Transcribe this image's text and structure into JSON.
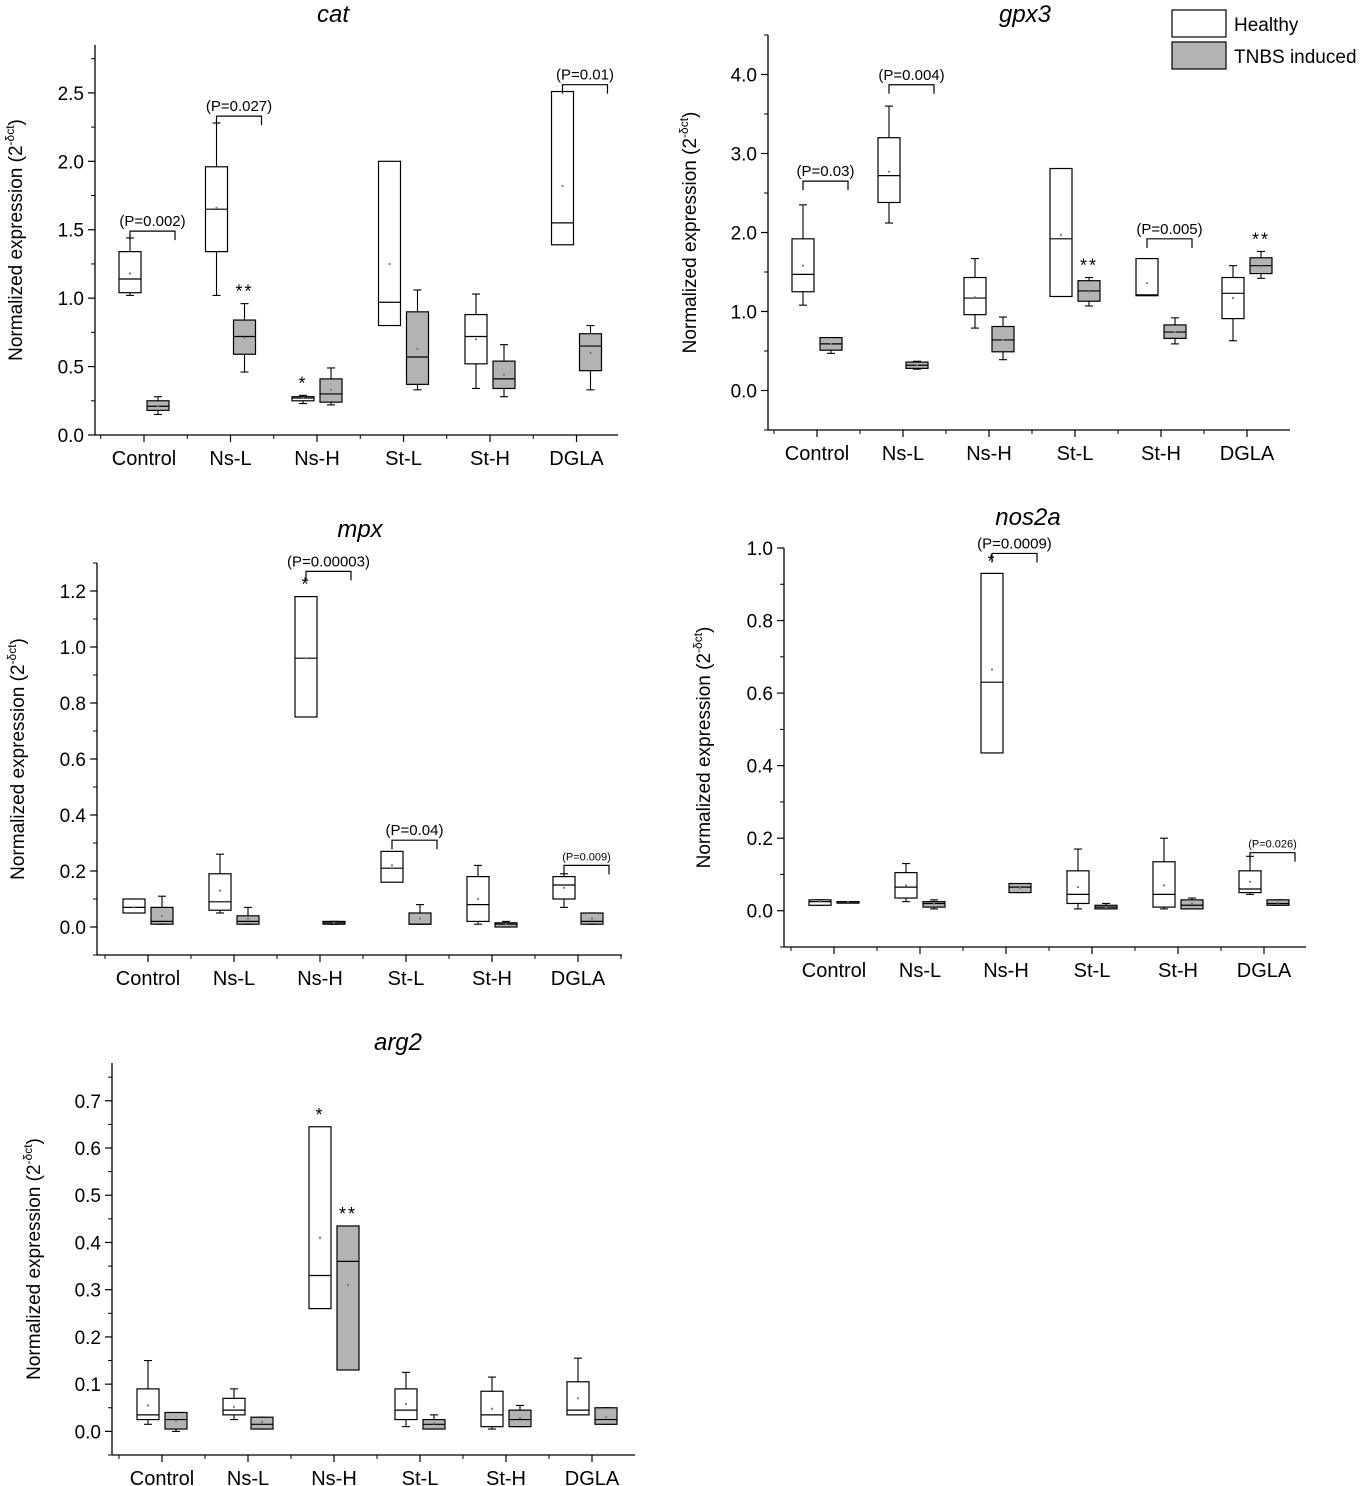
{
  "legend": {
    "placement": "top-right",
    "items": [
      {
        "label": "Healthy",
        "color": "#ffffff"
      },
      {
        "label": "TNBS induced",
        "color": "#b3b3b3"
      }
    ]
  },
  "chart_data": [
    {
      "id": "cat",
      "type": "box",
      "title": "cat",
      "ylabel": "Normalized expression (2^-δct)",
      "ylim": [
        0,
        2.85
      ],
      "yticks": [
        0.0,
        0.5,
        1.0,
        1.5,
        2.0,
        2.5
      ],
      "ytick_labels": [
        "0.0",
        "0.5",
        "1.0",
        "1.5",
        "2.0",
        "2.5"
      ],
      "categories": [
        "Control",
        "Ns-L",
        "Ns-H",
        "St-L",
        "St-H",
        "DGLA"
      ],
      "series": [
        {
          "name": "Healthy",
          "boxes": [
            {
              "q1": 1.04,
              "median": 1.14,
              "q3": 1.34,
              "wlo": 1.02,
              "whi": 1.44,
              "mean": 1.18
            },
            {
              "q1": 1.34,
              "median": 1.65,
              "q3": 1.96,
              "wlo": 1.02,
              "whi": 2.28,
              "mean": 1.66
            },
            {
              "q1": 0.25,
              "median": 0.27,
              "q3": 0.28,
              "wlo": 0.23,
              "whi": 0.29,
              "mean": 0.27,
              "mark": "*"
            },
            {
              "q1": 0.8,
              "median": 0.97,
              "q3": 2.0,
              "mean": 1.25
            },
            {
              "q1": 0.52,
              "median": 0.72,
              "q3": 0.88,
              "wlo": 0.34,
              "whi": 1.03,
              "mean": 0.7
            },
            {
              "q1": 1.39,
              "median": 1.55,
              "q3": 2.51,
              "mean": 1.82
            }
          ]
        },
        {
          "name": "TNBS induced",
          "boxes": [
            {
              "q1": 0.18,
              "median": 0.21,
              "q3": 0.25,
              "wlo": 0.15,
              "whi": 0.28,
              "mean": 0.21
            },
            {
              "q1": 0.59,
              "median": 0.72,
              "q3": 0.84,
              "wlo": 0.46,
              "whi": 0.96,
              "mean": 0.71,
              "mark": "**"
            },
            {
              "q1": 0.24,
              "median": 0.3,
              "q3": 0.41,
              "wlo": 0.22,
              "whi": 0.49,
              "mean": 0.33
            },
            {
              "q1": 0.37,
              "median": 0.57,
              "q3": 0.9,
              "wlo": 0.33,
              "whi": 1.06,
              "mean": 0.63
            },
            {
              "q1": 0.34,
              "median": 0.41,
              "q3": 0.54,
              "wlo": 0.28,
              "whi": 0.66,
              "mean": 0.44
            },
            {
              "q1": 0.47,
              "median": 0.65,
              "q3": 0.74,
              "wlo": 0.33,
              "whi": 0.8,
              "mean": 0.6
            }
          ]
        }
      ],
      "pvalues": [
        {
          "category": 0,
          "label": "(P=0.002)",
          "at": 1.49
        },
        {
          "category": 1,
          "label": "(P=0.027)",
          "at": 2.33
        },
        {
          "category": 5,
          "label": "(P=0.01)",
          "at": 2.56
        }
      ]
    },
    {
      "id": "gpx3",
      "type": "box",
      "title": "gpx3",
      "ylabel": "Normalized expression (2^-δct)",
      "ylim": [
        -0.5,
        4.5
      ],
      "yticks": [
        0.0,
        1.0,
        2.0,
        3.0,
        4.0
      ],
      "ytick_labels": [
        "0.0",
        "1.0",
        "2.0",
        "3.0",
        "4.0"
      ],
      "categories": [
        "Control",
        "Ns-L",
        "Ns-H",
        "St-L",
        "St-H",
        "DGLA"
      ],
      "series": [
        {
          "name": "Healthy",
          "boxes": [
            {
              "q1": 1.25,
              "median": 1.47,
              "q3": 1.92,
              "wlo": 1.08,
              "whi": 2.35,
              "mean": 1.58
            },
            {
              "q1": 2.38,
              "median": 2.72,
              "q3": 3.2,
              "wlo": 2.12,
              "whi": 3.6,
              "mean": 2.77
            },
            {
              "q1": 0.96,
              "median": 1.17,
              "q3": 1.43,
              "wlo": 0.79,
              "whi": 1.67,
              "mean": 1.18
            },
            {
              "q1": 1.19,
              "median": 1.92,
              "q3": 2.81,
              "mean": 1.97
            },
            {
              "q1": 1.2,
              "median": 1.21,
              "q3": 1.67,
              "mean": 1.36
            },
            {
              "q1": 0.91,
              "median": 1.23,
              "q3": 1.43,
              "wlo": 0.63,
              "whi": 1.58,
              "mean": 1.17
            }
          ]
        },
        {
          "name": "TNBS induced",
          "boxes": [
            {
              "q1": 0.51,
              "median": 0.59,
              "q3": 0.67,
              "wlo": 0.47,
              "whi": 0.67,
              "mean": 0.59
            },
            {
              "q1": 0.28,
              "median": 0.32,
              "q3": 0.36,
              "wlo": 0.27,
              "whi": 0.37,
              "mean": 0.32
            },
            {
              "q1": 0.49,
              "median": 0.64,
              "q3": 0.81,
              "wlo": 0.39,
              "whi": 0.93,
              "mean": 0.64
            },
            {
              "q1": 1.13,
              "median": 1.26,
              "q3": 1.39,
              "wlo": 1.07,
              "whi": 1.43,
              "mean": 1.25,
              "mark": "**"
            },
            {
              "q1": 0.66,
              "median": 0.74,
              "q3": 0.83,
              "wlo": 0.59,
              "whi": 0.92,
              "mean": 0.74
            },
            {
              "q1": 1.48,
              "median": 1.58,
              "q3": 1.68,
              "wlo": 1.42,
              "whi": 1.76,
              "mean": 1.57,
              "mark": "**"
            }
          ]
        }
      ],
      "pvalues": [
        {
          "category": 0,
          "label": "(P=0.03)",
          "at": 2.65
        },
        {
          "category": 1,
          "label": "(P=0.004)",
          "at": 3.87
        },
        {
          "category": 4,
          "label": "(P=0.005)",
          "at": 1.92
        }
      ]
    },
    {
      "id": "mpx",
      "type": "box",
      "title": "mpx",
      "ylabel": "Normalized expression (2^-δct)",
      "ylim": [
        -0.1,
        1.3
      ],
      "yticks": [
        0.0,
        0.2,
        0.4,
        0.6,
        0.8,
        1.0,
        1.2
      ],
      "ytick_labels": [
        "0.0",
        "0.2",
        "0.4",
        "0.6",
        "0.8",
        "1.0",
        "1.2"
      ],
      "categories": [
        "Control",
        "Ns-L",
        "Ns-H",
        "St-L",
        "St-H",
        "DGLA"
      ],
      "series": [
        {
          "name": "Healthy",
          "boxes": [
            {
              "q1": 0.05,
              "median": 0.07,
              "q3": 0.1,
              "wlo": 0.05,
              "whi": 0.1,
              "mean": 0.07
            },
            {
              "q1": 0.06,
              "median": 0.09,
              "q3": 0.19,
              "wlo": 0.05,
              "whi": 0.26,
              "mean": 0.13
            },
            {
              "q1": 0.75,
              "median": 0.96,
              "q3": 1.18,
              "mean": 0.96,
              "mark": "*"
            },
            {
              "q1": 0.16,
              "median": 0.21,
              "q3": 0.27,
              "mean": 0.22
            },
            {
              "q1": 0.02,
              "median": 0.08,
              "q3": 0.18,
              "wlo": 0.01,
              "whi": 0.22,
              "mean": 0.1
            },
            {
              "q1": 0.1,
              "median": 0.15,
              "q3": 0.18,
              "wlo": 0.07,
              "whi": 0.19,
              "mean": 0.14
            }
          ]
        },
        {
          "name": "TNBS induced",
          "boxes": [
            {
              "q1": 0.01,
              "median": 0.02,
              "q3": 0.07,
              "wlo": 0.01,
              "whi": 0.11,
              "mean": 0.04
            },
            {
              "q1": 0.01,
              "median": 0.02,
              "q3": 0.04,
              "wlo": 0.01,
              "whi": 0.07,
              "mean": 0.03
            },
            {
              "q1": 0.01,
              "median": 0.015,
              "q3": 0.02,
              "wlo": 0.01,
              "whi": 0.02,
              "mean": 0.015
            },
            {
              "q1": 0.01,
              "median": 0.01,
              "q3": 0.05,
              "wlo": 0.01,
              "whi": 0.08,
              "mean": 0.03
            },
            {
              "q1": 0.0,
              "median": 0.01,
              "q3": 0.015,
              "wlo": 0.0,
              "whi": 0.02,
              "mean": 0.01
            },
            {
              "q1": 0.01,
              "median": 0.02,
              "q3": 0.05,
              "wlo": 0.01,
              "whi": 0.05,
              "mean": 0.03
            }
          ]
        }
      ],
      "pvalues": [
        {
          "category": 2,
          "label": "(P=0.00003)",
          "at": 1.27
        },
        {
          "category": 3,
          "label": "(P=0.04)",
          "at": 0.31
        },
        {
          "category": 5,
          "label": "(P=0.009)",
          "at": 0.22,
          "small": true
        }
      ]
    },
    {
      "id": "nos2a",
      "type": "box",
      "title": "nos2a",
      "ylabel": "Normalized expression (2^-δct)",
      "ylim": [
        -0.1,
        1.0
      ],
      "yticks": [
        0.0,
        0.2,
        0.4,
        0.6,
        0.8,
        1.0
      ],
      "ytick_labels": [
        "0.0",
        "0.2",
        "0.4",
        "0.6",
        "0.8",
        "1.0"
      ],
      "categories": [
        "Control",
        "Ns-L",
        "Ns-H",
        "St-L",
        "St-H",
        "DGLA"
      ],
      "series": [
        {
          "name": "Healthy",
          "boxes": [
            {
              "q1": 0.015,
              "median": 0.025,
              "q3": 0.03,
              "wlo": 0.015,
              "whi": 0.03,
              "mean": 0.025
            },
            {
              "q1": 0.035,
              "median": 0.065,
              "q3": 0.105,
              "wlo": 0.025,
              "whi": 0.13,
              "mean": 0.07
            },
            {
              "q1": 0.435,
              "median": 0.63,
              "q3": 0.93,
              "mean": 0.665,
              "mark": "*"
            },
            {
              "q1": 0.02,
              "median": 0.045,
              "q3": 0.11,
              "wlo": 0.005,
              "whi": 0.17,
              "mean": 0.065
            },
            {
              "q1": 0.01,
              "median": 0.045,
              "q3": 0.135,
              "wlo": 0.005,
              "whi": 0.2,
              "mean": 0.07
            },
            {
              "q1": 0.05,
              "median": 0.06,
              "q3": 0.11,
              "wlo": 0.045,
              "whi": 0.15,
              "mean": 0.08
            }
          ]
        },
        {
          "name": "TNBS induced",
          "boxes": [
            {
              "q1": 0.025,
              "median": 0.025,
              "q3": 0.025,
              "mean": 0.025
            },
            {
              "q1": 0.01,
              "median": 0.02,
              "q3": 0.025,
              "wlo": 0.005,
              "whi": 0.03,
              "mean": 0.02
            },
            {
              "q1": 0.05,
              "median": 0.065,
              "q3": 0.075,
              "wlo": 0.05,
              "whi": 0.075,
              "mean": 0.063
            },
            {
              "q1": 0.005,
              "median": 0.01,
              "q3": 0.015,
              "wlo": 0.005,
              "whi": 0.02,
              "mean": 0.01
            },
            {
              "q1": 0.005,
              "median": 0.015,
              "q3": 0.03,
              "wlo": 0.005,
              "whi": 0.035,
              "mean": 0.02
            },
            {
              "q1": 0.015,
              "median": 0.02,
              "q3": 0.03,
              "wlo": 0.015,
              "whi": 0.03,
              "mean": 0.022
            }
          ]
        }
      ],
      "pvalues": [
        {
          "category": 2,
          "label": "(P=0.0009)",
          "at": 0.985
        },
        {
          "category": 5,
          "label": "(P=0.026)",
          "at": 0.16,
          "small": true
        }
      ]
    },
    {
      "id": "arg2",
      "type": "box",
      "title": "arg2",
      "ylabel": "Normalized expression (2^-δct)",
      "ylim": [
        -0.05,
        0.78
      ],
      "yticks": [
        0.0,
        0.1,
        0.2,
        0.3,
        0.4,
        0.5,
        0.6,
        0.7
      ],
      "ytick_labels": [
        "0.0",
        "0.1",
        "0.2",
        "0.3",
        "0.4",
        "0.5",
        "0.6",
        "0.7"
      ],
      "categories": [
        "Control",
        "Ns-L",
        "Ns-H",
        "St-L",
        "St-H",
        "DGLA"
      ],
      "series": [
        {
          "name": "Healthy",
          "boxes": [
            {
              "q1": 0.025,
              "median": 0.035,
              "q3": 0.09,
              "wlo": 0.015,
              "whi": 0.15,
              "mean": 0.055
            },
            {
              "q1": 0.035,
              "median": 0.045,
              "q3": 0.07,
              "wlo": 0.025,
              "whi": 0.09,
              "mean": 0.052
            },
            {
              "q1": 0.26,
              "median": 0.33,
              "q3": 0.645,
              "mean": 0.41,
              "mark": "*"
            },
            {
              "q1": 0.025,
              "median": 0.045,
              "q3": 0.09,
              "wlo": 0.01,
              "whi": 0.125,
              "mean": 0.058
            },
            {
              "q1": 0.01,
              "median": 0.035,
              "q3": 0.085,
              "wlo": 0.005,
              "whi": 0.115,
              "mean": 0.048
            },
            {
              "q1": 0.035,
              "median": 0.045,
              "q3": 0.105,
              "wlo": 0.035,
              "whi": 0.155,
              "mean": 0.07
            }
          ]
        },
        {
          "name": "TNBS induced",
          "boxes": [
            {
              "q1": 0.005,
              "median": 0.025,
              "q3": 0.04,
              "wlo": 0.0,
              "whi": 0.04,
              "mean": 0.022
            },
            {
              "q1": 0.005,
              "median": 0.015,
              "q3": 0.03,
              "wlo": 0.005,
              "whi": 0.03,
              "mean": 0.02
            },
            {
              "q1": 0.13,
              "median": 0.36,
              "q3": 0.435,
              "mean": 0.31,
              "mark": "**"
            },
            {
              "q1": 0.005,
              "median": 0.015,
              "q3": 0.025,
              "wlo": 0.005,
              "whi": 0.035,
              "mean": 0.017
            },
            {
              "q1": 0.01,
              "median": 0.025,
              "q3": 0.045,
              "wlo": 0.01,
              "whi": 0.055,
              "mean": 0.028
            },
            {
              "q1": 0.015,
              "median": 0.025,
              "q3": 0.05,
              "wlo": 0.015,
              "whi": 0.05,
              "mean": 0.03
            }
          ]
        }
      ],
      "pvalues": []
    }
  ]
}
